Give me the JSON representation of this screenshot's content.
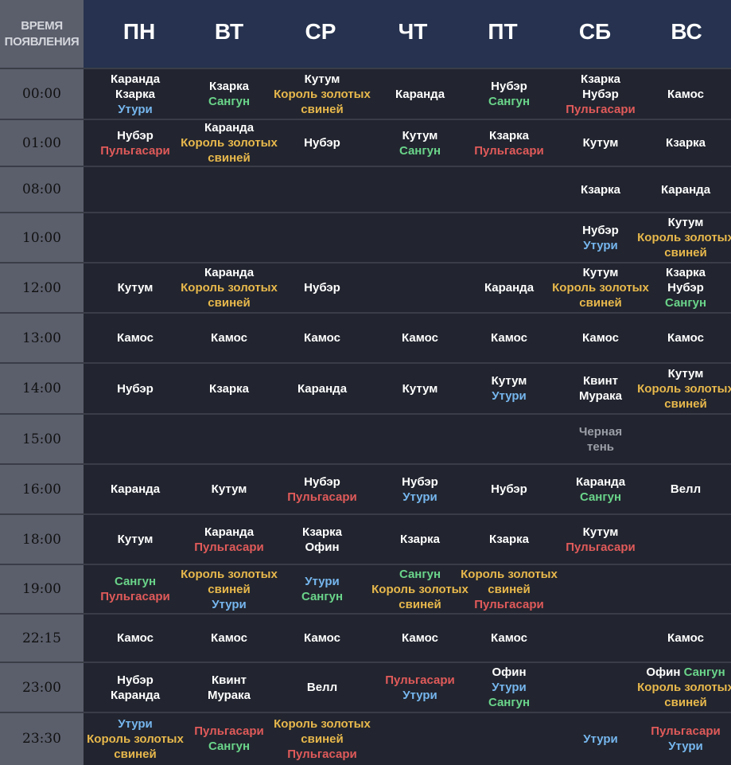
{
  "header": {
    "time_label_line1": "ВРЕМЯ",
    "time_label_line2": "ПОЯВЛЕНИЯ",
    "days": [
      "ПН",
      "ВТ",
      "СР",
      "ЧТ",
      "ПТ",
      "СБ",
      "ВС"
    ]
  },
  "colors": {
    "white": "#ffffff",
    "gold": "#e8b84c",
    "green": "#6ad48a",
    "red": "#e05a5a",
    "blue": "#76b6ee",
    "gray": "#9b9ea6",
    "header_bg": "#26324f",
    "time_col_bg": "#5b5f6c",
    "body_bg": "#22252f"
  },
  "rows": [
    {
      "time": "00:00",
      "cells": [
        [
          [
            "Каранда",
            "white"
          ],
          [
            "Кзарка",
            "white"
          ],
          [
            "Утури",
            "blue"
          ]
        ],
        [
          [
            "Кзарка",
            "white"
          ],
          [
            "Сангун",
            "green"
          ]
        ],
        [
          [
            "Кутум",
            "white"
          ],
          [
            "Король золотых",
            "gold"
          ],
          [
            "свиней",
            "gold"
          ]
        ],
        [
          [
            "Каранда",
            "white"
          ]
        ],
        [
          [
            "Нубэр",
            "white"
          ],
          [
            "Сангун",
            "green"
          ]
        ],
        [
          [
            "Кзарка",
            "white"
          ],
          [
            "Нубэр",
            "white"
          ],
          [
            "Пульгасари",
            "red"
          ]
        ],
        [
          [
            "Камос",
            "white"
          ]
        ]
      ]
    },
    {
      "time": "01:00",
      "cells": [
        [
          [
            "Нубэр",
            "white"
          ],
          [
            "Пульгасари",
            "red"
          ]
        ],
        [
          [
            "Каранда",
            "white"
          ],
          [
            "Король золотых",
            "gold"
          ],
          [
            "свиней",
            "gold"
          ]
        ],
        [
          [
            "Нубэр",
            "white"
          ]
        ],
        [
          [
            "Кутум",
            "white"
          ],
          [
            "Сангун",
            "green"
          ]
        ],
        [
          [
            "Кзарка",
            "white"
          ],
          [
            "Пульгасари",
            "red"
          ]
        ],
        [
          [
            "Кутум",
            "white"
          ]
        ],
        [
          [
            "Кзарка",
            "white"
          ]
        ]
      ]
    },
    {
      "time": "08:00",
      "cells": [
        [],
        [],
        [],
        [],
        [],
        [
          [
            "Кзарка",
            "white"
          ]
        ],
        [
          [
            "Каранда",
            "white"
          ]
        ]
      ]
    },
    {
      "time": "10:00",
      "cells": [
        [],
        [],
        [],
        [],
        [],
        [
          [
            "Нубэр",
            "white"
          ],
          [
            "Утури",
            "blue"
          ]
        ],
        [
          [
            "Кутум",
            "white"
          ],
          [
            "Король золотых",
            "gold"
          ],
          [
            "свиней",
            "gold"
          ]
        ]
      ]
    },
    {
      "time": "12:00",
      "cells": [
        [
          [
            "Кутум",
            "white"
          ]
        ],
        [
          [
            "Каранда",
            "white"
          ],
          [
            "Король золотых",
            "gold"
          ],
          [
            "свиней",
            "gold"
          ]
        ],
        [
          [
            "Нубэр",
            "white"
          ]
        ],
        [],
        [
          [
            "Каранда",
            "white"
          ]
        ],
        [
          [
            "Кутум",
            "white"
          ],
          [
            "Король золотых",
            "gold"
          ],
          [
            "свиней",
            "gold"
          ]
        ],
        [
          [
            "Кзарка",
            "white"
          ],
          [
            "Нубэр",
            "white"
          ],
          [
            "Сангун",
            "green"
          ]
        ]
      ]
    },
    {
      "time": "13:00",
      "cells": [
        [
          [
            "Камос",
            "white"
          ]
        ],
        [
          [
            "Камос",
            "white"
          ]
        ],
        [
          [
            "Камос",
            "white"
          ]
        ],
        [
          [
            "Камос",
            "white"
          ]
        ],
        [
          [
            "Камос",
            "white"
          ]
        ],
        [
          [
            "Камос",
            "white"
          ]
        ],
        [
          [
            "Камос",
            "white"
          ]
        ]
      ]
    },
    {
      "time": "14:00",
      "cells": [
        [
          [
            "Нубэр",
            "white"
          ]
        ],
        [
          [
            "Кзарка",
            "white"
          ]
        ],
        [
          [
            "Каранда",
            "white"
          ]
        ],
        [
          [
            "Кутум",
            "white"
          ]
        ],
        [
          [
            "Кутум",
            "white"
          ],
          [
            "Утури",
            "blue"
          ]
        ],
        [
          [
            "Квинт",
            "white"
          ],
          [
            "Мурака",
            "white"
          ]
        ],
        [
          [
            "Кутум",
            "white"
          ],
          [
            "Король золотых",
            "gold"
          ],
          [
            "свиней",
            "gold"
          ]
        ]
      ]
    },
    {
      "time": "15:00",
      "cells": [
        [],
        [],
        [],
        [],
        [],
        [
          [
            "Черная",
            "gray"
          ],
          [
            "тень",
            "gray"
          ]
        ],
        []
      ]
    },
    {
      "time": "16:00",
      "cells": [
        [
          [
            "Каранда",
            "white"
          ]
        ],
        [
          [
            "Кутум",
            "white"
          ]
        ],
        [
          [
            "Нубэр",
            "white"
          ],
          [
            "Пульгасари",
            "red"
          ]
        ],
        [
          [
            "Нубэр",
            "white"
          ],
          [
            "Утури",
            "blue"
          ]
        ],
        [
          [
            "Нубэр",
            "white"
          ]
        ],
        [
          [
            "Каранда",
            "white"
          ],
          [
            "Сангун",
            "green"
          ]
        ],
        [
          [
            "Велл",
            "white"
          ]
        ]
      ]
    },
    {
      "time": "18:00",
      "cells": [
        [
          [
            "Кутум",
            "white"
          ]
        ],
        [
          [
            "Каранда",
            "white"
          ],
          [
            "Пульгасари",
            "red"
          ]
        ],
        [
          [
            "Кзарка",
            "white"
          ],
          [
            "Офин",
            "white"
          ]
        ],
        [
          [
            "Кзарка",
            "white"
          ]
        ],
        [
          [
            "Кзарка",
            "white"
          ]
        ],
        [
          [
            "Кутум",
            "white"
          ],
          [
            "Пульгасари",
            "red"
          ]
        ],
        []
      ]
    },
    {
      "time": "19:00",
      "cells": [
        [
          [
            "Сангун",
            "green"
          ],
          [
            "Пульгасари",
            "red"
          ]
        ],
        [
          [
            "Король золотых",
            "gold"
          ],
          [
            "свиней",
            "gold"
          ],
          [
            "Утури",
            "blue"
          ]
        ],
        [
          [
            "Утури",
            "blue"
          ],
          [
            "Сангун",
            "green"
          ]
        ],
        [
          [
            "Сангун",
            "green"
          ],
          [
            "Король золотых",
            "gold"
          ],
          [
            "свиней",
            "gold"
          ]
        ],
        [
          [
            "Король золотых",
            "gold"
          ],
          [
            "свиней",
            "gold"
          ],
          [
            "Пульгасари",
            "red"
          ]
        ],
        [],
        []
      ]
    },
    {
      "time": "22:15",
      "cells": [
        [
          [
            "Камос",
            "white"
          ]
        ],
        [
          [
            "Камос",
            "white"
          ]
        ],
        [
          [
            "Камос",
            "white"
          ]
        ],
        [
          [
            "Камос",
            "white"
          ]
        ],
        [
          [
            "Камос",
            "white"
          ]
        ],
        [],
        [
          [
            "Камос",
            "white"
          ]
        ]
      ]
    },
    {
      "time": "23:00",
      "cells": [
        [
          [
            "Нубэр",
            "white"
          ],
          [
            "Каранда",
            "white"
          ]
        ],
        [
          [
            "Квинт",
            "white"
          ],
          [
            "Мурака",
            "white"
          ]
        ],
        [
          [
            "Велл",
            "white"
          ]
        ],
        [
          [
            "Пульгасари",
            "red"
          ],
          [
            "Утури",
            "blue"
          ]
        ],
        [
          [
            "Офин",
            "white"
          ],
          [
            "Утури",
            "blue"
          ],
          [
            "Сангун",
            "green"
          ]
        ],
        [],
        [
          [
            "Офин",
            "white",
            " ",
            "Сангун",
            "green"
          ],
          [
            "Король золотых",
            "gold"
          ],
          [
            "свиней",
            "gold"
          ]
        ]
      ]
    },
    {
      "time": "23:30",
      "cells": [
        [
          [
            "Утури",
            "blue"
          ],
          [
            "Король золотых",
            "gold"
          ],
          [
            "свиней",
            "gold"
          ]
        ],
        [
          [
            "Пульгасари",
            "red"
          ],
          [
            "Сангун",
            "green"
          ]
        ],
        [
          [
            "Король золотых",
            "gold"
          ],
          [
            "свиней",
            "gold"
          ],
          [
            "Пульгасари",
            "red"
          ]
        ],
        [],
        [],
        [
          [
            "Утури",
            "blue"
          ]
        ],
        [
          [
            "Пульгасари",
            "red"
          ],
          [
            "Утури",
            "blue"
          ]
        ]
      ]
    }
  ]
}
